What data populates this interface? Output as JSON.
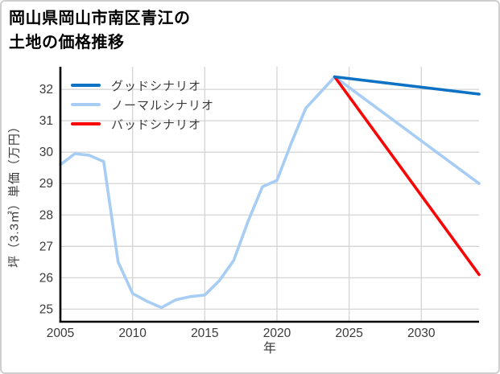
{
  "title": {
    "line1": "岡山県岡山市南区青江の",
    "line2": "土地の価格推移"
  },
  "legend": [
    {
      "key": "good-scenario",
      "label": "グッドシナリオ",
      "color": "#0d72c4"
    },
    {
      "key": "normal-scenario",
      "label": "ノーマルシナリオ",
      "color": "#a7cdf4"
    },
    {
      "key": "bad-scenario",
      "label": "バッドシナリオ",
      "color": "#fa0505"
    }
  ],
  "axes": {
    "x_label": "年",
    "y_label": "坪（3.3㎡）単価（万円）"
  },
  "colors": {
    "grid": "#d4d4d4",
    "spine": "#000000",
    "tick_text": "#3a3a3a",
    "background": "#ffffff",
    "frame_border": "#cfcfcf"
  },
  "chart_data": {
    "type": "line",
    "title": "岡山県岡山市南区青江の土地の価格推移",
    "xlabel": "年",
    "ylabel": "坪（3.3㎡）単価（万円）",
    "xlim": [
      2005,
      2034
    ],
    "ylim": [
      24.6,
      32.72
    ],
    "x_ticks": [
      2005,
      2010,
      2015,
      2020,
      2025,
      2030
    ],
    "y_ticks": [
      25,
      26,
      27,
      28,
      29,
      30,
      31,
      32
    ],
    "grid": true,
    "legend_position": "upper-left",
    "series": [
      {
        "key": "normal-scenario",
        "name": "ノーマルシナリオ",
        "color": "#a7cdf4",
        "x": [
          2005,
          2006,
          2007,
          2008,
          2009,
          2010,
          2011,
          2012,
          2013,
          2014,
          2015,
          2016,
          2017,
          2018,
          2019,
          2020,
          2021,
          2022,
          2023,
          2024,
          2034
        ],
        "values": [
          29.6,
          29.95,
          29.9,
          29.7,
          26.5,
          25.5,
          25.25,
          25.05,
          25.3,
          25.4,
          25.45,
          25.9,
          26.55,
          27.8,
          28.9,
          29.1,
          30.3,
          31.4,
          31.9,
          32.4,
          29.0
        ]
      },
      {
        "key": "bad-scenario",
        "name": "バッドシナリオ",
        "color": "#fa0505",
        "x": [
          2024,
          2034
        ],
        "values": [
          32.4,
          26.1
        ]
      },
      {
        "key": "good-scenario",
        "name": "グッドシナリオ",
        "color": "#0d72c4",
        "x": [
          2024,
          2034
        ],
        "values": [
          32.4,
          31.85
        ]
      }
    ]
  }
}
